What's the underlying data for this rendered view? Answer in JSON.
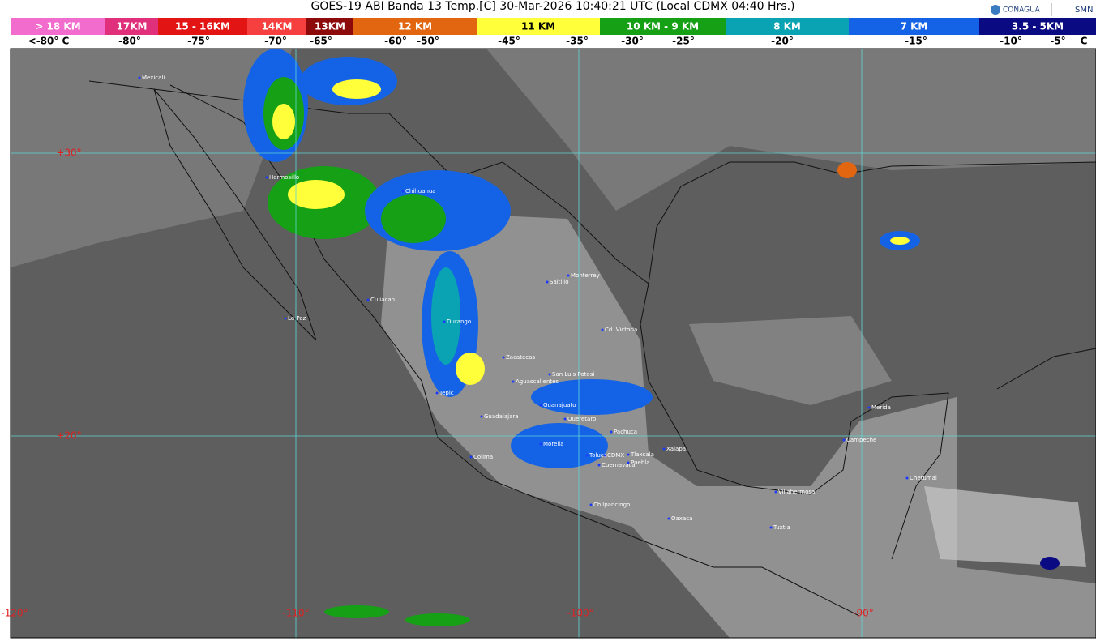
{
  "header": {
    "title": "GOES-19 ABI Banda 13 Temp.[C] 30-Mar-2026 10:40:21 UTC (Local CDMX  04:40 Hrs.)",
    "logos": [
      "CONAGUA",
      "SMN"
    ]
  },
  "legend": {
    "bands": [
      {
        "label": "> 18 KM",
        "color": "#f26ccd"
      },
      {
        "label": "17KM",
        "color": "#e0307c"
      },
      {
        "label": "15 - 16KM",
        "color": "#e31414"
      },
      {
        "label": "14KM",
        "color": "#f64040"
      },
      {
        "label": "13KM",
        "color": "#8c0a0a"
      },
      {
        "label": "12 KM",
        "color": "#e2660f"
      },
      {
        "label": "11 KM",
        "color": "#ffff3a"
      },
      {
        "label": "10 KM - 9 KM",
        "color": "#16a016"
      },
      {
        "label": "8 KM",
        "color": "#0aa3b3"
      },
      {
        "label": "7 KM",
        "color": "#1463e6"
      },
      {
        "label": "3.5 - 5KM",
        "color": "#0a0a82"
      }
    ],
    "temperatures": [
      "<-80° C",
      "-80°",
      "-75°",
      "-70°",
      "-65°",
      "-60°",
      "-50°",
      "-45°",
      "-35°",
      "-30°",
      "-25°",
      "-20°",
      "-15°",
      "-10°",
      "-5°",
      "C"
    ]
  },
  "map": {
    "latitude_labels": [
      "+30°",
      "+20°"
    ],
    "longitude_labels": [
      "-120°",
      "-110°",
      "-100°",
      "-90°"
    ],
    "cities": [
      "Mexicali",
      "Hermosillo",
      "Chihuahua",
      "La Paz",
      "Culiacan",
      "Durango",
      "Saltillo",
      "Monterrey",
      "Cd. Victoria",
      "Zacatecas",
      "San Luis Potosi",
      "Aguascalientes",
      "Tepic",
      "Guanajuato",
      "Queretaro",
      "Guadalajara",
      "Pachuca",
      "Morelia",
      "Colima",
      "Toluca",
      "CDMX",
      "Tlaxcala",
      "Puebla",
      "Cuernavaca",
      "Xalapa",
      "Chilpancingo",
      "Oaxaca",
      "Villahermosa",
      "Tuxtla",
      "Campeche",
      "Merida",
      "Chetumal"
    ]
  }
}
